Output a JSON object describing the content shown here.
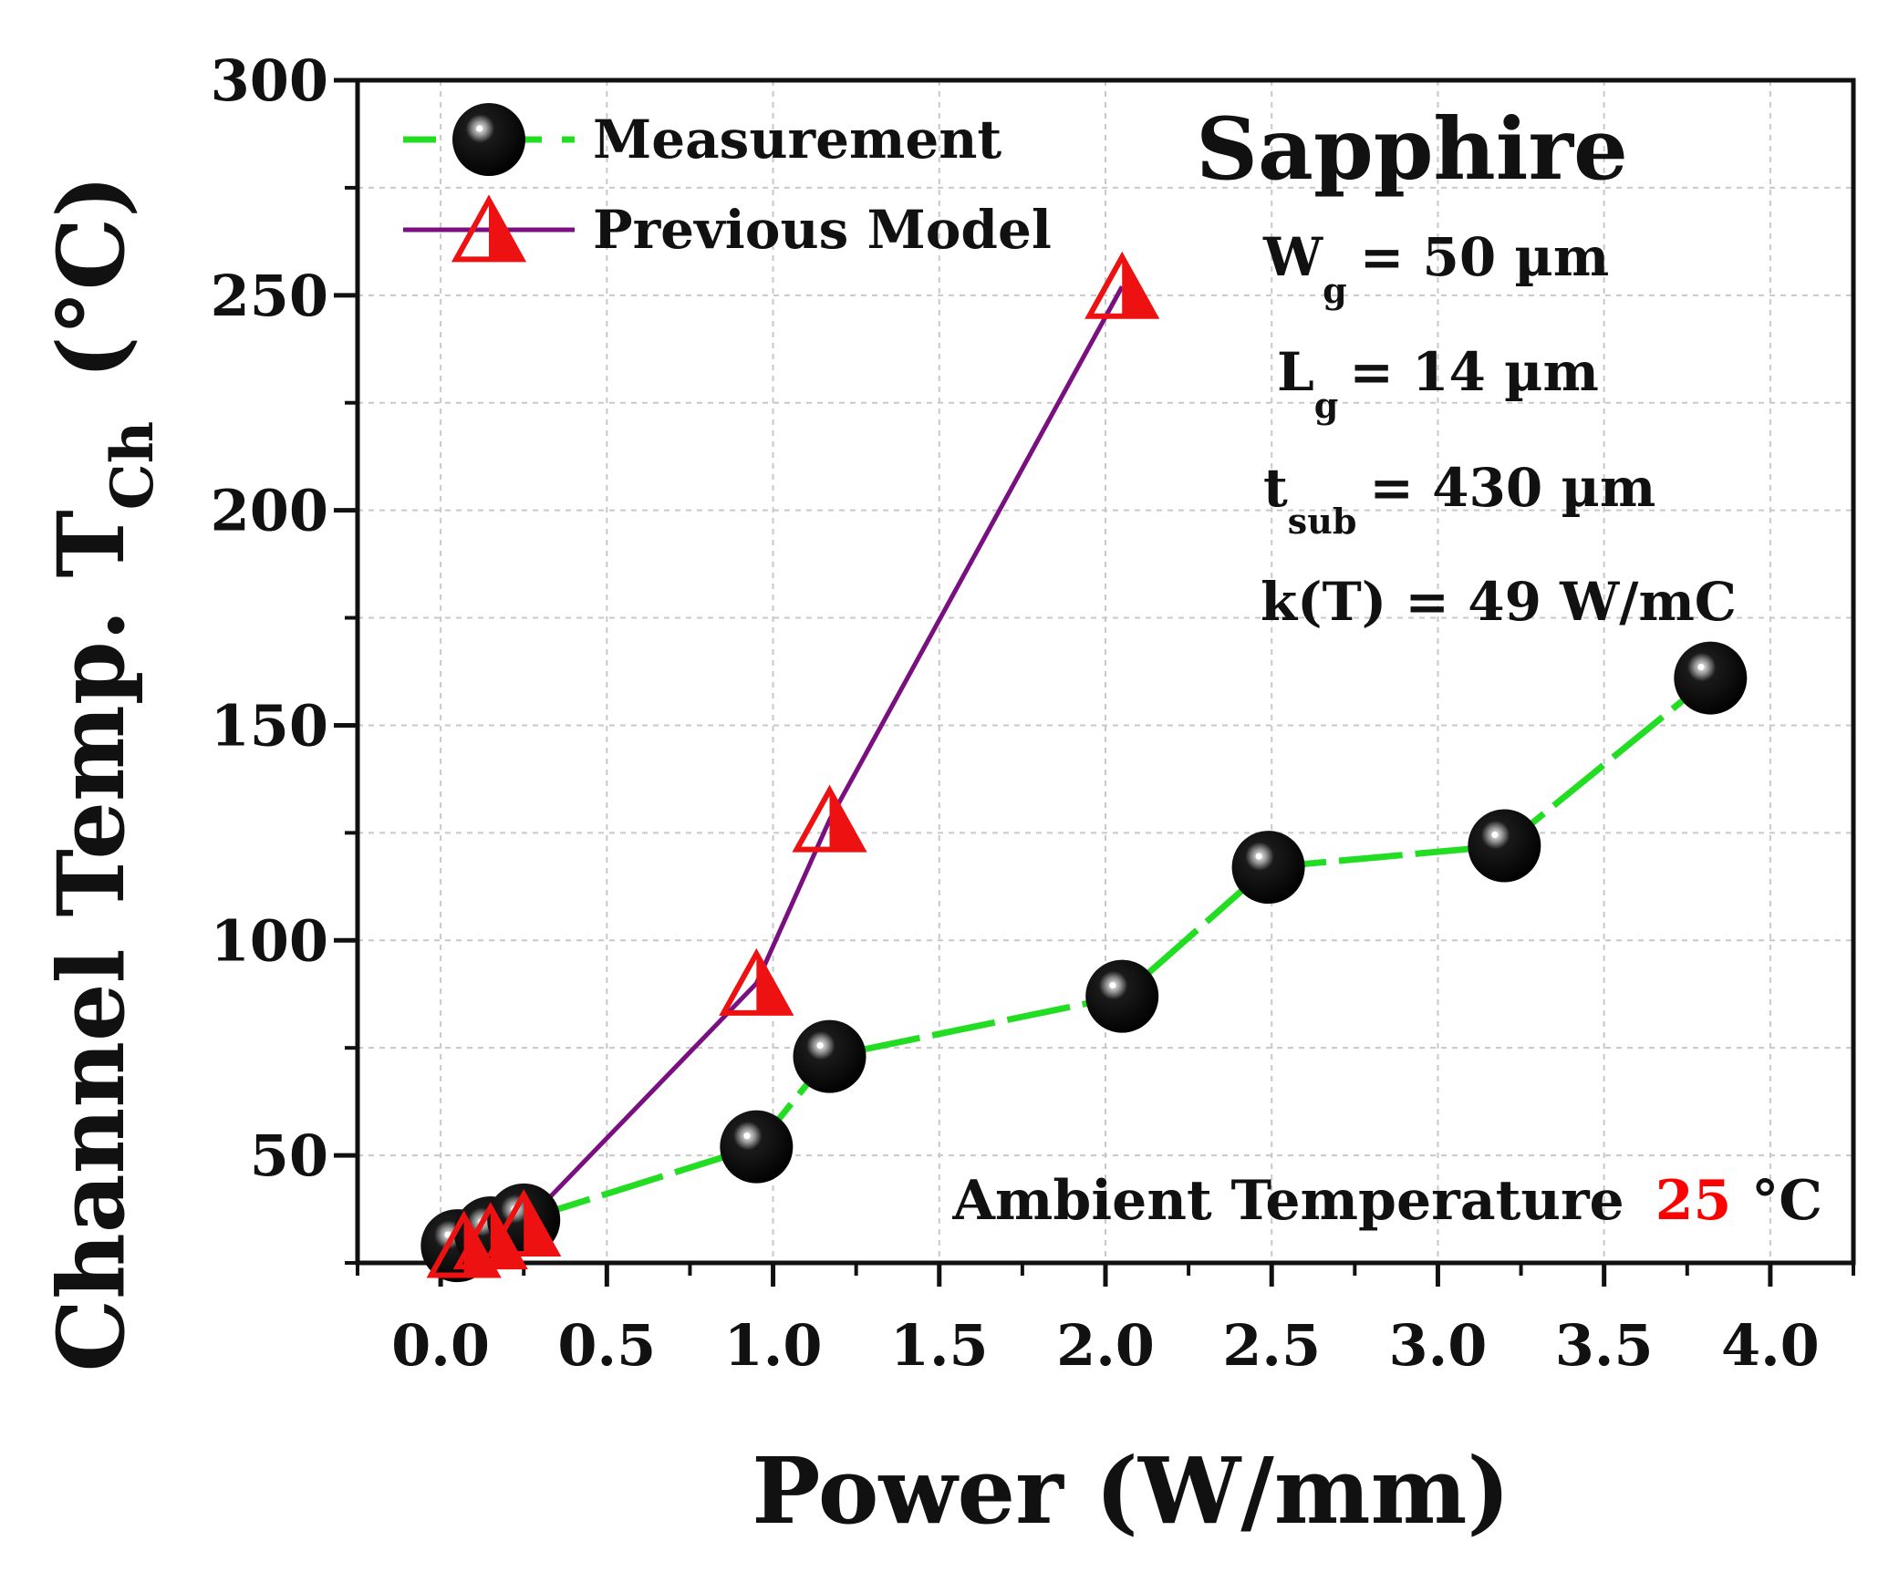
{
  "chart_data": {
    "type": "line",
    "title": "Sapphire",
    "xlabel": "Power (W/mm)",
    "ylabel_main": "Channel Temp. T",
    "ylabel_sub": "Ch",
    "ylabel_unit": "(°C)",
    "xlim": [
      -0.25,
      4.25
    ],
    "ylim": [
      25,
      300
    ],
    "xticks": [
      "0.0",
      "0.5",
      "1.0",
      "1.5",
      "2.0",
      "2.5",
      "3.0",
      "3.5",
      "4.0"
    ],
    "yticks": [
      "50",
      "100",
      "150",
      "200",
      "250",
      "300"
    ],
    "grid": true,
    "legend_position": "top-left",
    "series": [
      {
        "name": "Measurement",
        "line_color": "#22dd22",
        "marker": "black-sphere",
        "x": [
          0.05,
          0.15,
          0.25,
          0.95,
          1.17,
          2.05,
          2.49,
          3.2,
          3.82
        ],
        "y": [
          29,
          32,
          35,
          52,
          73,
          87,
          117,
          122,
          161
        ]
      },
      {
        "name": "Previous Model",
        "line_color": "#7a1080",
        "marker_color": "#ee1111",
        "marker": "half-filled-triangle",
        "x": [
          0.07,
          0.15,
          0.25,
          0.95,
          1.17,
          2.05
        ],
        "y": [
          29,
          31,
          34,
          90,
          128,
          252
        ]
      }
    ],
    "annotations": {
      "wg_label": "W",
      "wg_sub": "g",
      "wg_value": "= 50 µm",
      "lg_label": "L",
      "lg_sub": "g",
      "lg_value": "=  14 µm",
      "tsub_label": "t",
      "tsub_sub": "sub",
      "tsub_value": "= 430 µm",
      "k_text": "k(T) = 49 W/mC",
      "ambient_prefix": "Ambient Temperature",
      "ambient_value": "25",
      "ambient_unit": "°C",
      "ambient_value_color": "#ff0000",
      "title_color": "#1010dd"
    }
  }
}
